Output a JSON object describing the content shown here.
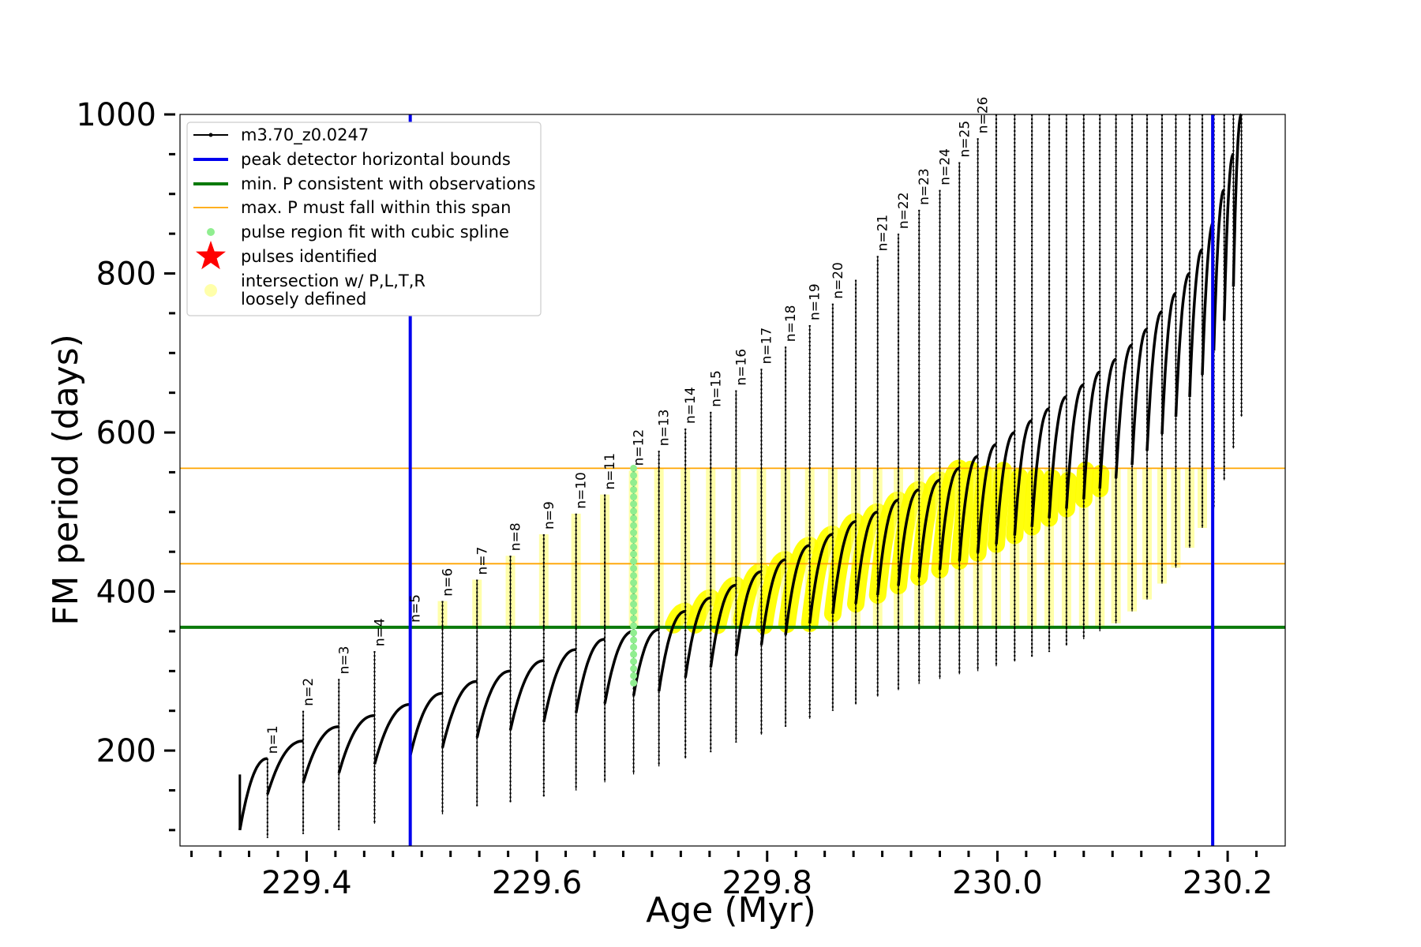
{
  "chart_data": {
    "type": "line",
    "title": "",
    "xlabel": "Age (Myr)",
    "ylabel": "FM period (days)",
    "xlim": [
      229.29,
      230.25
    ],
    "ylim": [
      80,
      1000
    ],
    "xticks": [
      229.4,
      229.6,
      229.8,
      230.0,
      230.2
    ],
    "xtick_labels": [
      "229.4",
      "229.6",
      "229.8",
      "230.0",
      "230.2"
    ],
    "x_minor_step": 0.025,
    "yticks": [
      200,
      400,
      600,
      800,
      1000
    ],
    "ytick_labels": [
      "200",
      "400",
      "600",
      "800",
      "1000"
    ],
    "y_minor_step": 50,
    "grid": false,
    "legend_placement": "upper-left",
    "legend": [
      {
        "label": "m3.70_z0.0247",
        "kind": "line-marker",
        "color": "#000000"
      },
      {
        "label": "peak detector horizontal bounds",
        "kind": "line",
        "color": "#0000ee"
      },
      {
        "label": "min. P consistent with observations",
        "kind": "line",
        "color": "#0a7a0a"
      },
      {
        "label": "max. P must fall within this span",
        "kind": "line",
        "color": "#ffa500"
      },
      {
        "label": "pulse region fit with cubic spline",
        "kind": "dot",
        "color": "#90ee90"
      },
      {
        "label": "pulses identified",
        "kind": "star",
        "color": "#ff0000"
      },
      {
        "label": "intersection w/ P,L,T,R\nloosely defined",
        "kind": "circle",
        "color": "#ffffaa"
      }
    ],
    "series": [
      {
        "name": "m3.70_z0.0247",
        "color": "#000000",
        "start_x": 229.342,
        "start_y": [
          170,
          100
        ],
        "pulses": [
          {
            "x": 229.366,
            "y_min": 90,
            "y_before": 190,
            "y_spike": 190,
            "label": "n=1"
          },
          {
            "x": 229.397,
            "y_min": 95,
            "y_before": 212,
            "y_spike": 250,
            "label": "n=2"
          },
          {
            "x": 229.428,
            "y_min": 100,
            "y_before": 230,
            "y_spike": 290,
            "label": "n=3"
          },
          {
            "x": 229.459,
            "y_min": 108,
            "y_before": 244,
            "y_spike": 325,
            "label": "n=4"
          },
          {
            "x": 229.49,
            "y_min": 115,
            "y_before": 258,
            "y_spike": 355,
            "label": "n=5"
          },
          {
            "x": 229.518,
            "y_min": 120,
            "y_before": 272,
            "y_spike": 388,
            "label": "n=6"
          },
          {
            "x": 229.548,
            "y_min": 130,
            "y_before": 287,
            "y_spike": 415,
            "label": "n=7"
          },
          {
            "x": 229.577,
            "y_min": 135,
            "y_before": 300,
            "y_spike": 445,
            "label": "n=8"
          },
          {
            "x": 229.606,
            "y_min": 142,
            "y_before": 313,
            "y_spike": 472,
            "label": "n=9"
          },
          {
            "x": 229.634,
            "y_min": 150,
            "y_before": 327,
            "y_spike": 498,
            "label": "n=10"
          },
          {
            "x": 229.659,
            "y_min": 160,
            "y_before": 340,
            "y_spike": 522,
            "label": "n=11"
          },
          {
            "x": 229.684,
            "y_min": 170,
            "y_before": 350,
            "y_spike": 552,
            "label": "n=12"
          },
          {
            "x": 229.706,
            "y_min": 180,
            "y_before": 352,
            "y_spike": 577,
            "label": "n=13"
          },
          {
            "x": 229.729,
            "y_min": 190,
            "y_before": 375,
            "y_spike": 605,
            "label": "n=14"
          },
          {
            "x": 229.751,
            "y_min": 198,
            "y_before": 392,
            "y_spike": 626,
            "label": "n=15"
          },
          {
            "x": 229.773,
            "y_min": 210,
            "y_before": 408,
            "y_spike": 653,
            "label": "n=16"
          },
          {
            "x": 229.795,
            "y_min": 220,
            "y_before": 425,
            "y_spike": 680,
            "label": "n=17"
          },
          {
            "x": 229.816,
            "y_min": 230,
            "y_before": 440,
            "y_spike": 708,
            "label": "n=18"
          },
          {
            "x": 229.837,
            "y_min": 240,
            "y_before": 458,
            "y_spike": 735,
            "label": "n=19"
          },
          {
            "x": 229.857,
            "y_min": 250,
            "y_before": 472,
            "y_spike": 762,
            "label": "n=20"
          },
          {
            "x": 229.877,
            "y_min": 258,
            "y_before": 488,
            "y_spike": 792,
            "label": ""
          },
          {
            "x": 229.896,
            "y_min": 268,
            "y_before": 500,
            "y_spike": 822,
            "label": "n=21"
          },
          {
            "x": 229.914,
            "y_min": 276,
            "y_before": 515,
            "y_spike": 850,
            "label": "n=22"
          },
          {
            "x": 229.932,
            "y_min": 284,
            "y_before": 528,
            "y_spike": 880,
            "label": "n=23"
          },
          {
            "x": 229.95,
            "y_min": 290,
            "y_before": 540,
            "y_spike": 905,
            "label": "n=24"
          },
          {
            "x": 229.967,
            "y_min": 296,
            "y_before": 555,
            "y_spike": 940,
            "label": "n=25"
          },
          {
            "x": 229.983,
            "y_min": 300,
            "y_before": 570,
            "y_spike": 970,
            "label": "n=26"
          },
          {
            "x": 229.999,
            "y_min": 306,
            "y_before": 585,
            "y_spike": 1000,
            "label": ""
          },
          {
            "x": 230.015,
            "y_min": 312,
            "y_before": 600,
            "y_spike": 1000,
            "label": ""
          },
          {
            "x": 230.03,
            "y_min": 318,
            "y_before": 615,
            "y_spike": 1000,
            "label": ""
          },
          {
            "x": 230.045,
            "y_min": 324,
            "y_before": 630,
            "y_spike": 1000,
            "label": ""
          },
          {
            "x": 230.06,
            "y_min": 332,
            "y_before": 645,
            "y_spike": 1000,
            "label": ""
          },
          {
            "x": 230.075,
            "y_min": 340,
            "y_before": 660,
            "y_spike": 1000,
            "label": ""
          },
          {
            "x": 230.089,
            "y_min": 350,
            "y_before": 676,
            "y_spike": 1000,
            "label": ""
          },
          {
            "x": 230.103,
            "y_min": 360,
            "y_before": 692,
            "y_spike": 1000,
            "label": ""
          },
          {
            "x": 230.117,
            "y_min": 375,
            "y_before": 710,
            "y_spike": 1000,
            "label": ""
          },
          {
            "x": 230.13,
            "y_min": 390,
            "y_before": 730,
            "y_spike": 1000,
            "label": ""
          },
          {
            "x": 230.143,
            "y_min": 410,
            "y_before": 752,
            "y_spike": 1000,
            "label": ""
          },
          {
            "x": 230.155,
            "y_min": 430,
            "y_before": 775,
            "y_spike": 1000,
            "label": ""
          },
          {
            "x": 230.167,
            "y_min": 455,
            "y_before": 800,
            "y_spike": 1000,
            "label": ""
          },
          {
            "x": 230.178,
            "y_min": 480,
            "y_before": 830,
            "y_spike": 1000,
            "label": ""
          },
          {
            "x": 230.188,
            "y_min": 505,
            "y_before": 865,
            "y_spike": 1000,
            "label": ""
          },
          {
            "x": 230.197,
            "y_min": 540,
            "y_before": 905,
            "y_spike": 1000,
            "label": ""
          },
          {
            "x": 230.205,
            "y_min": 580,
            "y_before": 950,
            "y_spike": 1000,
            "label": ""
          },
          {
            "x": 230.212,
            "y_min": 620,
            "y_before": 1000,
            "y_spike": 1000,
            "label": ""
          }
        ]
      }
    ],
    "reference_lines": {
      "peak_detector_bounds_x": [
        229.49,
        230.187
      ],
      "min_period_y": 355,
      "max_period_span_y": [
        435,
        555
      ]
    },
    "highlight_regions": {
      "spline_fit_pulse_x": 229.684,
      "spline_fit_y_range": [
        285,
        555
      ],
      "intersection_y_range": [
        355,
        555
      ],
      "intersection_x_range": [
        229.49,
        230.187
      ]
    }
  }
}
